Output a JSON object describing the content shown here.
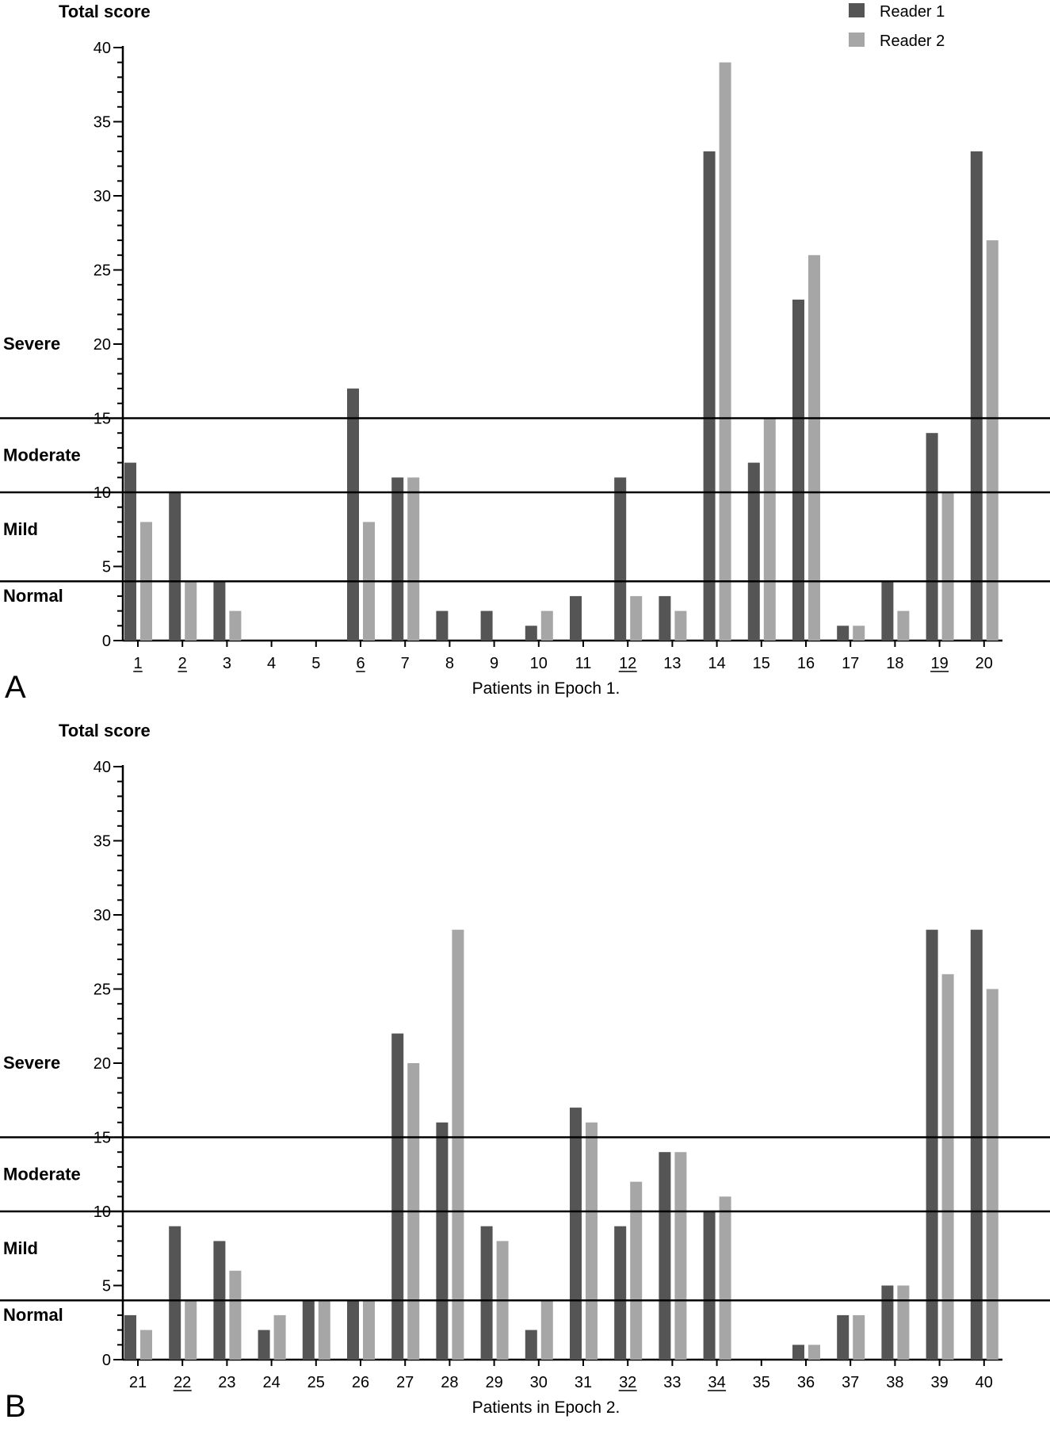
{
  "legend": {
    "items": [
      {
        "label": "Reader 1",
        "color": "#555555"
      },
      {
        "label": "Reader 2",
        "color": "#a6a6a6"
      }
    ]
  },
  "chart_data": [
    {
      "type": "bar",
      "panel_letter": "A",
      "ylabel": "Total score",
      "xlabel": "Patients in Epoch 1.",
      "ylim": [
        0,
        40
      ],
      "y_ticks": [
        0,
        5,
        10,
        15,
        20,
        25,
        30,
        35,
        40
      ],
      "categories": [
        "1",
        "2",
        "3",
        "4",
        "5",
        "6",
        "7",
        "8",
        "9",
        "10",
        "11",
        "12",
        "13",
        "14",
        "15",
        "16",
        "17",
        "18",
        "19",
        "20"
      ],
      "underlined_categories": [
        "1",
        "2",
        "6",
        "12",
        "19"
      ],
      "series": [
        {
          "name": "Reader 1",
          "values": [
            12,
            10,
            4,
            0,
            0,
            17,
            11,
            2,
            2,
            1,
            3,
            11,
            3,
            33,
            12,
            23,
            1,
            4,
            14,
            33
          ]
        },
        {
          "name": "Reader 2",
          "values": [
            8,
            4,
            2,
            0,
            0,
            8,
            11,
            0,
            0,
            2,
            0,
            3,
            2,
            39,
            15,
            26,
            1,
            2,
            10,
            27
          ]
        }
      ],
      "threshold_lines": [
        15,
        10,
        4
      ],
      "severity_bands": [
        {
          "label": "Severe",
          "at": 20
        },
        {
          "label": "Moderate",
          "at": 12.5
        },
        {
          "label": "Mild",
          "at": 7.5
        },
        {
          "label": "Normal",
          "at": 3
        }
      ]
    },
    {
      "type": "bar",
      "panel_letter": "B",
      "ylabel": "Total score",
      "xlabel": "Patients in Epoch 2.",
      "ylim": [
        0,
        40
      ],
      "y_ticks": [
        0,
        5,
        10,
        15,
        20,
        25,
        30,
        35,
        40
      ],
      "categories": [
        "21",
        "22",
        "23",
        "24",
        "25",
        "26",
        "27",
        "28",
        "29",
        "30",
        "31",
        "32",
        "33",
        "34",
        "35",
        "36",
        "37",
        "38",
        "39",
        "40"
      ],
      "underlined_categories": [
        "22",
        "32",
        "34"
      ],
      "series": [
        {
          "name": "Reader 1",
          "values": [
            3,
            9,
            8,
            2,
            4,
            4,
            22,
            16,
            9,
            2,
            17,
            9,
            14,
            10,
            0,
            1,
            3,
            5,
            29,
            29
          ]
        },
        {
          "name": "Reader 2",
          "values": [
            2,
            4,
            6,
            3,
            4,
            4,
            20,
            29,
            8,
            4,
            16,
            12,
            14,
            11,
            0,
            1,
            3,
            5,
            26,
            25
          ]
        }
      ],
      "threshold_lines": [
        15,
        10,
        4
      ],
      "severity_bands": [
        {
          "label": "Severe",
          "at": 20
        },
        {
          "label": "Moderate",
          "at": 12.5
        },
        {
          "label": "Mild",
          "at": 7.5
        },
        {
          "label": "Normal",
          "at": 3
        }
      ]
    }
  ]
}
